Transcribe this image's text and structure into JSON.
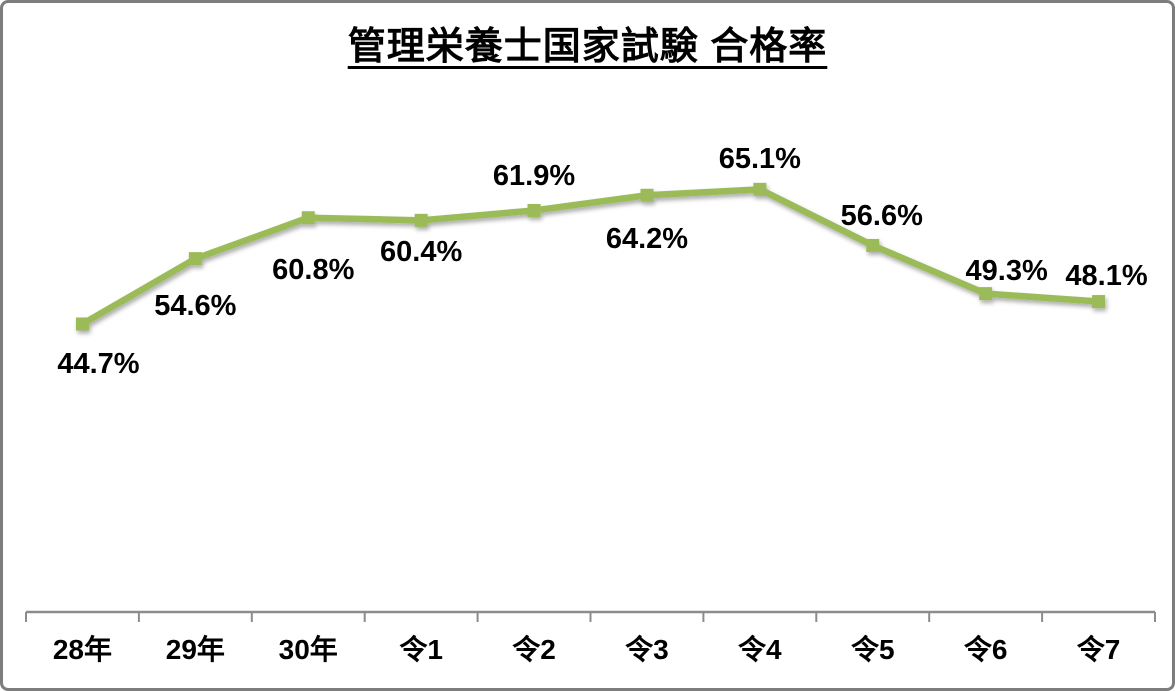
{
  "page": {
    "background": "#ffffff",
    "border_color": "#7d7d7d"
  },
  "chart_data": {
    "type": "line",
    "title": "管理栄養士国家試験 合格率",
    "categories": [
      "28年",
      "29年",
      "30年",
      "令1",
      "令2",
      "令3",
      "令4",
      "令5",
      "令6",
      "令7"
    ],
    "values": [
      44.7,
      54.6,
      60.8,
      60.4,
      61.9,
      64.2,
      65.1,
      56.6,
      49.3,
      48.1
    ],
    "labels": [
      "44.7%",
      "54.6%",
      "60.8%",
      "60.4%",
      "61.9%",
      "64.2%",
      "65.1%",
      "56.6%",
      "49.3%",
      "48.1%"
    ],
    "xlabel": "",
    "ylabel": "",
    "ylim": [
      0,
      90
    ],
    "grid": false,
    "legend": "none",
    "marker": "square",
    "line_color": "#9bbb59",
    "marker_color": "#9bbb59",
    "axis_color": "#8c8c8c",
    "label_color": "#000000",
    "label_placement": [
      "below",
      "below",
      "below",
      "below",
      "above",
      "below",
      "above",
      "above",
      "above",
      "above"
    ],
    "label_dx": [
      16,
      0,
      5,
      0,
      0,
      0,
      0,
      9,
      21,
      8
    ],
    "label_dy": [
      8,
      15,
      20,
      0,
      0,
      12,
      4,
      5,
      11,
      8
    ]
  }
}
